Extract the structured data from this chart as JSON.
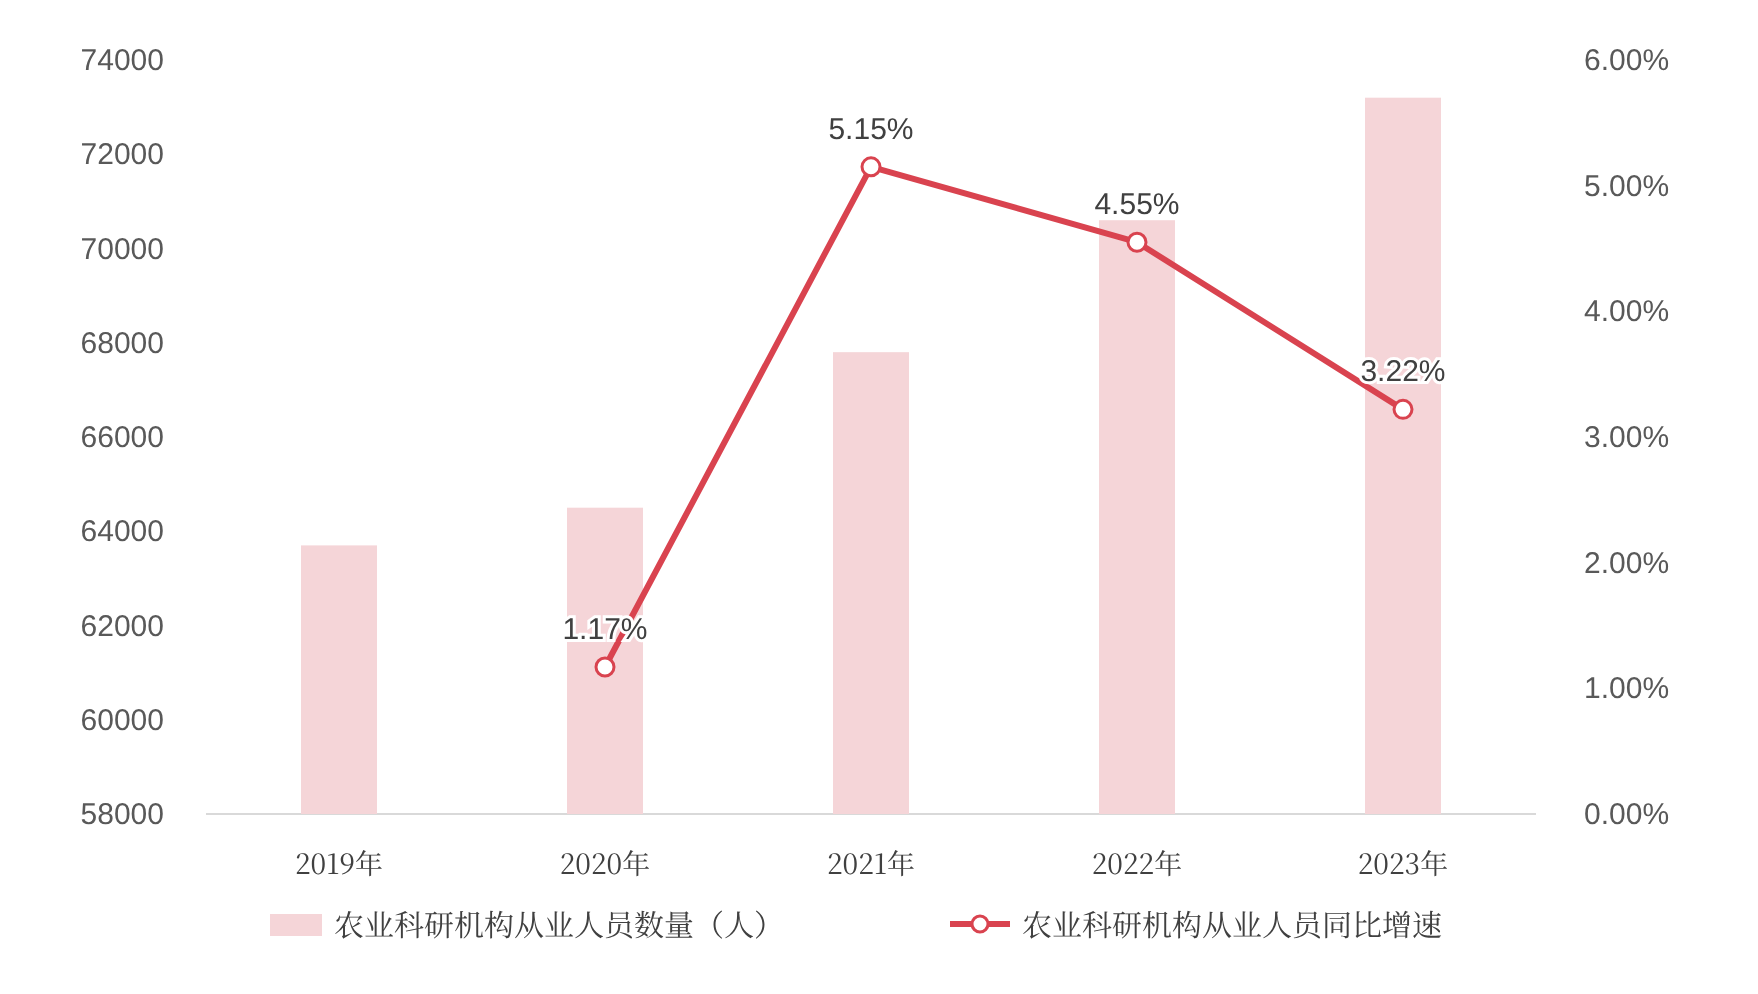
{
  "chart_data": {
    "type": "bar",
    "categories": [
      "2019年",
      "2020年",
      "2021年",
      "2022年",
      "2023年"
    ],
    "series": [
      {
        "name": "农业科研机构从业人员数量（人）",
        "color": "#f5d5d8",
        "values": [
          63700,
          64500,
          67800,
          70600,
          73200
        ]
      },
      {
        "name": "农业科研机构从业人员同比增速",
        "type": "line",
        "axis": "y2",
        "color": "#d9434f",
        "marker": "circle",
        "values": [
          null,
          1.17,
          5.15,
          4.55,
          3.22
        ],
        "value_labels": [
          null,
          "1.17%",
          "5.15%",
          "4.55%",
          "3.22%"
        ]
      }
    ],
    "ylim": [
      58000,
      74000
    ],
    "yticks": [
      58000,
      60000,
      62000,
      64000,
      66000,
      68000,
      70000,
      72000,
      74000
    ],
    "y2lim": [
      0,
      6
    ],
    "y2ticks": [
      {
        "value": 0,
        "label": "0.00%"
      },
      {
        "value": 1,
        "label": "1.00%"
      },
      {
        "value": 2,
        "label": "2.00%"
      },
      {
        "value": 3,
        "label": "3.00%"
      },
      {
        "value": 4,
        "label": "4.00%"
      },
      {
        "value": 5,
        "label": "5.00%"
      },
      {
        "value": 6,
        "label": "6.00%"
      }
    ],
    "grid": false,
    "legend": "bottom"
  }
}
